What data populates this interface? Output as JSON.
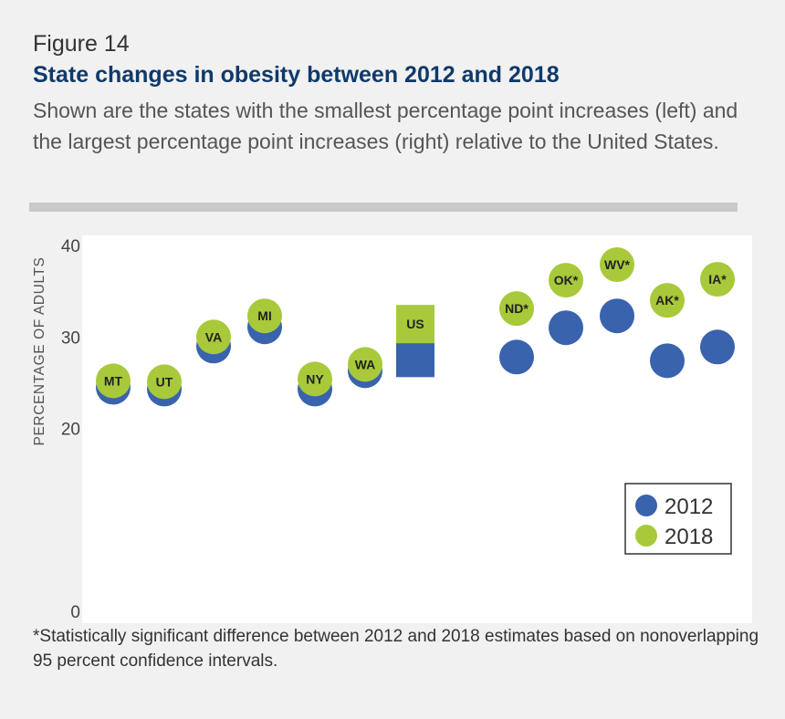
{
  "figure_label": "Figure 14",
  "title": "State changes in obesity between 2012 and 2018",
  "subtitle": "Shown are the states with the smallest percentage point increases (left) and the largest percentage point increases (right) relative to the United States.",
  "footnote": "*Statistically significant difference between 2012 and 2018 estimates based on nonoverlapping 95 percent confidence intervals.",
  "colors": {
    "y2012": "#3a63ad",
    "y2018": "#a8c93a",
    "title": "#0f3a6b"
  },
  "chart_data": {
    "type": "scatter",
    "ylabel": "PERCENTAGE OF ADULTS",
    "ylim": [
      0,
      40
    ],
    "yticks": [
      0,
      20,
      30,
      40
    ],
    "grid": false,
    "legend_position": "bottom-right",
    "categories": [
      "MT",
      "UT",
      "VA",
      "MI",
      "NY",
      "WA",
      "US",
      "ND*",
      "OK*",
      "WV*",
      "AK*",
      "IA*"
    ],
    "series": [
      {
        "name": "2012",
        "values": [
          24.4,
          24.2,
          28.9,
          31.0,
          24.2,
          26.2,
          27.6,
          27.7,
          30.9,
          32.2,
          27.3,
          28.8
        ]
      },
      {
        "name": "2018",
        "values": [
          25.1,
          25.0,
          29.9,
          32.2,
          25.3,
          26.9,
          31.3,
          33.0,
          36.1,
          37.8,
          33.9,
          36.2
        ]
      }
    ],
    "us_marker_shape": "square"
  }
}
